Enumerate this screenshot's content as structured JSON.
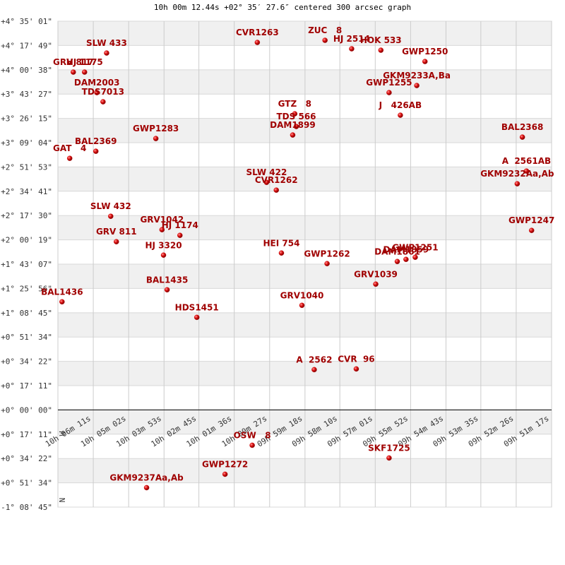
{
  "chart_data": {
    "type": "scatter",
    "title": "10h 00m 12.44s +02° 35′ 27.6″ centered 300 arcsec graph",
    "color": "#cc0000",
    "grid": true,
    "compass": [
      "W",
      "N"
    ],
    "labels": [
      "SLW 433",
      "GRV 817",
      "HJ 1175",
      "DAM2003",
      "TDS7013",
      "CVR1263",
      "ZUC   8",
      "HJ 2514",
      "HOK 533",
      "GWP1250",
      "GKM9233A,Ba",
      "GWP1255",
      "GTZ   8",
      "TDS 566",
      "DAM1899",
      "J   426AB",
      "BAL2368",
      "GWP1283",
      "BAL2369",
      "GAT   4",
      "A  2561AB",
      "GKM9232Aa,Ab",
      "SLW 422",
      "CVR1262",
      "SLW 432",
      "GRV1042",
      "HJ 1174",
      "GRV 811",
      "HJ 3320",
      "HEI 754",
      "GWP1262",
      "GWP1247",
      "DAM1861",
      "DAM1859",
      "GWP1251",
      "GRV1039",
      "BAL1435",
      "BAL1436",
      "GRV1040",
      "HDS1451",
      "A  2562",
      "CVR  96",
      "OSW   8",
      "SKF1725",
      "GWP1272",
      "GKM9237Aa,Ab"
    ],
    "x": [
      36345,
      36410,
      36388,
      36364,
      36352,
      36051,
      35919,
      35867,
      35810,
      35724,
      35740,
      35794,
      35978,
      35975,
      35982,
      35772,
      35534,
      36249,
      36366,
      36417,
      35526,
      35544,
      36033,
      36014,
      36337,
      36237,
      36202,
      36326,
      36234,
      36004,
      35915,
      35516,
      35778,
      35761,
      35743,
      35820,
      36227,
      36432,
      35964,
      36169,
      35940,
      35858,
      36061,
      35794,
      36114,
      36267
    ],
    "values": [
      15150,
      14340,
      14340,
      13470,
      13080,
      15600,
      15690,
      15330,
      15270,
      14790,
      13770,
      13470,
      12570,
      12030,
      11670,
      12510,
      11580,
      11520,
      10980,
      10680,
      10140,
      9600,
      9660,
      9330,
      8220,
      7650,
      7410,
      7140,
      6570,
      6660,
      6210,
      7620,
      6300,
      6390,
      6480,
      5340,
      5100,
      4590,
      4440,
      3930,
      1710,
      1740,
      -1500,
      -2040,
      -2730,
      -3300
    ],
    "xlim": [
      36440,
      35477
    ],
    "ylim": [
      -4125,
      16501
    ],
    "xticks": [
      {
        "value": 36371,
        "label": "10h 06m 11s"
      },
      {
        "value": 36302,
        "label": "10h 05m 02s"
      },
      {
        "value": 36233,
        "label": "10h 03m 53s"
      },
      {
        "value": 36165,
        "label": "10h 02m 45s"
      },
      {
        "value": 36096,
        "label": "10h 01m 36s"
      },
      {
        "value": 36027,
        "label": "10h 00m 27s"
      },
      {
        "value": 35958,
        "label": "09h 59m 18s"
      },
      {
        "value": 35890,
        "label": "09h 58m 10s"
      },
      {
        "value": 35821,
        "label": "09h 57m 01s"
      },
      {
        "value": 35752,
        "label": "09h 55m 52s"
      },
      {
        "value": 35683,
        "label": "09h 54m 43s"
      },
      {
        "value": 35615,
        "label": "09h 53m 35s"
      },
      {
        "value": 35546,
        "label": "09h 52m 26s"
      },
      {
        "value": 35477,
        "label": "09h 51m 17s"
      }
    ],
    "yticks": [
      {
        "value": 16501,
        "label": "+4° 35' 01\""
      },
      {
        "value": 15470,
        "label": "+4° 17' 49\""
      },
      {
        "value": 14438,
        "label": "+4° 00' 38\""
      },
      {
        "value": 13407,
        "label": "+3° 43' 27\""
      },
      {
        "value": 12376,
        "label": "+3° 26' 15\""
      },
      {
        "value": 11344,
        "label": "+3° 09' 04\""
      },
      {
        "value": 10313,
        "label": "+2° 51' 53\""
      },
      {
        "value": 9282,
        "label": "+2° 34' 41\""
      },
      {
        "value": 8250,
        "label": "+2° 17' 30\""
      },
      {
        "value": 7219,
        "label": "+2° 00' 19\""
      },
      {
        "value": 6188,
        "label": "+1° 43' 07\""
      },
      {
        "value": 5157,
        "label": "+1° 25' 56\""
      },
      {
        "value": 4125,
        "label": "+1° 08' 45\""
      },
      {
        "value": 3094,
        "label": "+0° 51' 34\""
      },
      {
        "value": 2063,
        "label": "+0° 34' 22\""
      },
      {
        "value": 1031,
        "label": "+0° 17' 11\""
      },
      {
        "value": 0,
        "label": "+0° 00' 00\""
      },
      {
        "value": -1031,
        "label": "+0° 17' 11\""
      },
      {
        "value": -2063,
        "label": "+0° 34' 22\""
      },
      {
        "value": -3094,
        "label": "+0° 51' 34\""
      },
      {
        "value": -4125,
        "label": "-1° 08' 45\""
      }
    ]
  }
}
